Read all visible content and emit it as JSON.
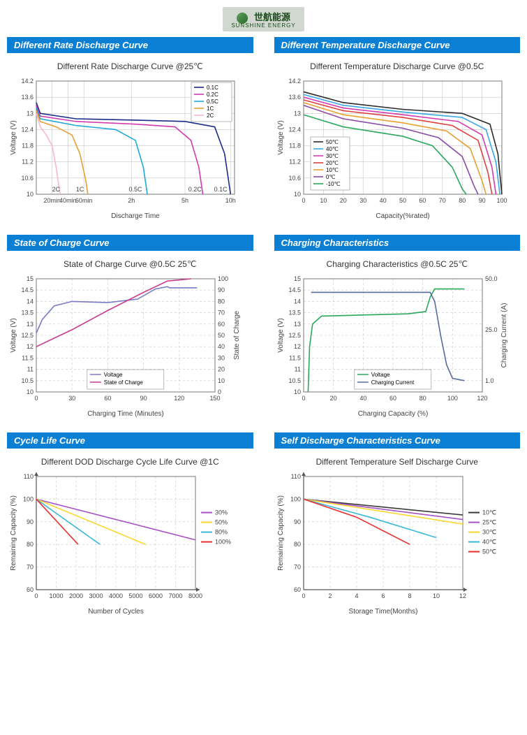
{
  "logo": {
    "cn": "世航能源",
    "en": "SUNSHINE ENERGY"
  },
  "chart1": {
    "header": "Different Rate Discharge Curve",
    "title": "Different Rate Discharge Curve @25℃",
    "type": "line",
    "ylabel": "Voltage (V)",
    "xlabel": "Discharge Time",
    "ylim": [
      10.0,
      14.2
    ],
    "yticks": [
      10.0,
      10.6,
      11.2,
      11.8,
      12.4,
      13.0,
      13.6,
      14.2
    ],
    "xticks_labels": [
      "20min",
      "40min",
      "60min",
      "2h",
      "5h",
      "10h"
    ],
    "xticks_pos": [
      0.08,
      0.16,
      0.24,
      0.48,
      0.75,
      0.98
    ],
    "grid_color": "#c7c7c7",
    "background": "#ffffff",
    "series": [
      {
        "name": "0.1C",
        "color": "#1a2a8a",
        "points": [
          [
            0,
            13.4
          ],
          [
            0.02,
            13.0
          ],
          [
            0.2,
            12.8
          ],
          [
            0.5,
            12.75
          ],
          [
            0.75,
            12.7
          ],
          [
            0.9,
            12.5
          ],
          [
            0.95,
            11.5
          ],
          [
            0.98,
            10.0
          ]
        ],
        "marker_x": 0.93,
        "marker_label": "0.1C"
      },
      {
        "name": "0.2C",
        "color": "#d43ab0",
        "points": [
          [
            0,
            13.3
          ],
          [
            0.02,
            12.9
          ],
          [
            0.2,
            12.7
          ],
          [
            0.5,
            12.6
          ],
          [
            0.7,
            12.5
          ],
          [
            0.78,
            12.0
          ],
          [
            0.82,
            11.0
          ],
          [
            0.84,
            10.0
          ]
        ],
        "marker_x": 0.8,
        "marker_label": "0.2C"
      },
      {
        "name": "0.5C",
        "color": "#1fa8d8",
        "points": [
          [
            0,
            13.2
          ],
          [
            0.02,
            12.8
          ],
          [
            0.2,
            12.55
          ],
          [
            0.4,
            12.4
          ],
          [
            0.5,
            12.0
          ],
          [
            0.54,
            11.0
          ],
          [
            0.56,
            10.0
          ]
        ],
        "marker_x": 0.5,
        "marker_label": "0.5C"
      },
      {
        "name": "1C",
        "color": "#e8a030",
        "points": [
          [
            0,
            13.1
          ],
          [
            0.02,
            12.7
          ],
          [
            0.1,
            12.5
          ],
          [
            0.18,
            12.2
          ],
          [
            0.22,
            11.5
          ],
          [
            0.25,
            10.5
          ],
          [
            0.26,
            10.0
          ]
        ],
        "marker_x": 0.22,
        "marker_label": "1C"
      },
      {
        "name": "2C",
        "color": "#f8b8c8",
        "points": [
          [
            0,
            13.0
          ],
          [
            0.02,
            12.5
          ],
          [
            0.05,
            12.2
          ],
          [
            0.08,
            11.8
          ],
          [
            0.1,
            11.0
          ],
          [
            0.12,
            10.0
          ]
        ],
        "marker_x": 0.1,
        "marker_label": "2C"
      }
    ],
    "legend_pos": "top-right"
  },
  "chart2": {
    "header": "Different Temperature Discharge Curve",
    "title": "Different Temperature Discharge Curve @0.5C",
    "type": "line",
    "ylabel": "Voltage (V)",
    "xlabel": "Capacity(%rated)",
    "ylim": [
      10.0,
      14.2
    ],
    "yticks": [
      10.0,
      10.6,
      11.2,
      11.8,
      12.4,
      13.0,
      13.6,
      14.2
    ],
    "xlim": [
      0,
      100
    ],
    "xticks": [
      0,
      10,
      20,
      30,
      40,
      50,
      60,
      70,
      80,
      90,
      100
    ],
    "grid_color": "#c7c7c7",
    "series": [
      {
        "name": "50℃",
        "color": "#2a2a2a",
        "points": [
          [
            0,
            13.8
          ],
          [
            20,
            13.4
          ],
          [
            50,
            13.15
          ],
          [
            80,
            13.0
          ],
          [
            94,
            12.6
          ],
          [
            98,
            11.5
          ],
          [
            100,
            10.0
          ]
        ]
      },
      {
        "name": "40℃",
        "color": "#3aa8e8",
        "points": [
          [
            0,
            13.7
          ],
          [
            20,
            13.3
          ],
          [
            50,
            13.05
          ],
          [
            80,
            12.85
          ],
          [
            92,
            12.4
          ],
          [
            97,
            11.2
          ],
          [
            99,
            10.0
          ]
        ]
      },
      {
        "name": "30℃",
        "color": "#d43ab0",
        "points": [
          [
            0,
            13.6
          ],
          [
            20,
            13.2
          ],
          [
            50,
            12.95
          ],
          [
            78,
            12.7
          ],
          [
            90,
            12.2
          ],
          [
            95,
            11.0
          ],
          [
            97,
            10.0
          ]
        ]
      },
      {
        "name": "20℃",
        "color": "#e04040",
        "points": [
          [
            0,
            13.5
          ],
          [
            20,
            13.1
          ],
          [
            50,
            12.85
          ],
          [
            75,
            12.55
          ],
          [
            88,
            12.0
          ],
          [
            93,
            10.8
          ],
          [
            95,
            10.0
          ]
        ]
      },
      {
        "name": "10℃",
        "color": "#e8a030",
        "points": [
          [
            0,
            13.4
          ],
          [
            20,
            12.95
          ],
          [
            50,
            12.65
          ],
          [
            72,
            12.35
          ],
          [
            84,
            11.7
          ],
          [
            90,
            10.5
          ],
          [
            92,
            10.0
          ]
        ]
      },
      {
        "name": "0℃",
        "color": "#8a4aa8",
        "points": [
          [
            0,
            13.3
          ],
          [
            20,
            12.8
          ],
          [
            50,
            12.45
          ],
          [
            68,
            12.1
          ],
          [
            80,
            11.4
          ],
          [
            86,
            10.3
          ],
          [
            88,
            10.0
          ]
        ]
      },
      {
        "name": "-10℃",
        "color": "#2aa85a",
        "points": [
          [
            0,
            12.95
          ],
          [
            20,
            12.5
          ],
          [
            50,
            12.15
          ],
          [
            65,
            11.8
          ],
          [
            75,
            11.0
          ],
          [
            80,
            10.2
          ],
          [
            82,
            10.0
          ]
        ]
      }
    ],
    "legend_pos": "bottom-left-inset"
  },
  "chart3": {
    "header": "State of Charge Curve",
    "title": "State of Charge Curve @0.5C 25℃",
    "type": "line-dual",
    "ylabel": "Voltage (V)",
    "y2label": "State of Charge",
    "xlabel": "Charging Time (Minutes)",
    "ylim": [
      10.0,
      15.0
    ],
    "yticks": [
      10.0,
      10.5,
      11.0,
      11.5,
      12.0,
      12.5,
      13.0,
      13.5,
      14.0,
      14.5,
      15.0
    ],
    "y2lim": [
      0,
      100
    ],
    "y2ticks": [
      0,
      10,
      20,
      30,
      40,
      50,
      60,
      70,
      80,
      90,
      100
    ],
    "xlim": [
      0,
      150
    ],
    "xticks": [
      0,
      30,
      60,
      90,
      120,
      150
    ],
    "grid_color": "#c7c7c7",
    "grid_dash": true,
    "series": [
      {
        "name": "Voltage",
        "color": "#7a7ac8",
        "axis": "y",
        "points": [
          [
            0,
            12.6
          ],
          [
            5,
            13.2
          ],
          [
            15,
            13.8
          ],
          [
            30,
            14.0
          ],
          [
            60,
            13.95
          ],
          [
            85,
            14.1
          ],
          [
            100,
            14.55
          ],
          [
            110,
            14.65
          ],
          [
            112,
            14.6
          ],
          [
            135,
            14.6
          ]
        ]
      },
      {
        "name": "State of Charge",
        "color": "#c83a8a",
        "axis": "y2",
        "points": [
          [
            0,
            40
          ],
          [
            30,
            55
          ],
          [
            60,
            72
          ],
          [
            90,
            88
          ],
          [
            110,
            98
          ],
          [
            130,
            100
          ]
        ]
      }
    ],
    "legend_pos": "bottom-center-inset"
  },
  "chart4": {
    "header": "Charging Characteristics",
    "title": "Charging Characteristics @0.5C 25℃",
    "type": "line-dual",
    "ylabel": "Voltage (V)",
    "y2label": "Charging Current (A)",
    "xlabel": "Charging Capacity (%)",
    "ylim": [
      10.0,
      15.0
    ],
    "yticks": [
      10.0,
      10.5,
      11.0,
      11.5,
      12.0,
      12.5,
      13.0,
      13.5,
      14.0,
      14.5,
      15.0
    ],
    "y2ticks_labels": [
      "1.0",
      "25.0",
      "50.0"
    ],
    "y2ticks_pos": [
      10.5,
      12.75,
      15.0
    ],
    "xlim": [
      0,
      120
    ],
    "xticks": [
      0,
      20,
      40,
      60,
      80,
      100,
      120
    ],
    "grid_color": "#c7c7c7",
    "grid_dash": true,
    "series": [
      {
        "name": "Voltage",
        "color": "#2aa85a",
        "axis": "y",
        "points": [
          [
            3,
            10.0
          ],
          [
            4,
            12.0
          ],
          [
            6,
            13.0
          ],
          [
            12,
            13.35
          ],
          [
            40,
            13.4
          ],
          [
            70,
            13.45
          ],
          [
            82,
            13.55
          ],
          [
            85,
            14.2
          ],
          [
            88,
            14.55
          ],
          [
            100,
            14.55
          ],
          [
            108,
            14.55
          ]
        ]
      },
      {
        "name": "Charging Current",
        "color": "#5a6a9a",
        "axis": "y",
        "points": [
          [
            5,
            14.4
          ],
          [
            85,
            14.4
          ],
          [
            88,
            14.0
          ],
          [
            92,
            12.5
          ],
          [
            96,
            11.2
          ],
          [
            100,
            10.6
          ],
          [
            108,
            10.5
          ]
        ]
      }
    ],
    "legend_pos": "bottom-center-inset"
  },
  "chart5": {
    "header": "Cycle Life Curve",
    "title": "Different DOD Discharge Cycle Life Curve @1C",
    "type": "line",
    "ylabel": "Remaining Capacity (%)",
    "xlabel": "Number of Cycles",
    "ylim": [
      60,
      110
    ],
    "yticks": [
      60,
      70,
      80,
      90,
      100,
      110
    ],
    "xlim": [
      0,
      8000
    ],
    "xticks": [
      0,
      1000,
      2000,
      3000,
      4000,
      5000,
      6000,
      7000,
      8000
    ],
    "grid_color": "#c7c7c7",
    "grid_dash": true,
    "arrow_axes": true,
    "series": [
      {
        "name": "30%",
        "color": "#a850c8",
        "points": [
          [
            0,
            100
          ],
          [
            8000,
            82
          ]
        ]
      },
      {
        "name": "50%",
        "color": "#f8d830",
        "points": [
          [
            0,
            100
          ],
          [
            5500,
            80
          ]
        ]
      },
      {
        "name": "80%",
        "color": "#3ab8d8",
        "points": [
          [
            0,
            100
          ],
          [
            3200,
            80
          ]
        ]
      },
      {
        "name": "100%",
        "color": "#e83030",
        "points": [
          [
            0,
            100
          ],
          [
            2100,
            80
          ]
        ]
      }
    ],
    "legend_pos": "right-outside"
  },
  "chart6": {
    "header": "Self Discharge Characteristics Curve",
    "title": "Different Temperature Self Discharge Curve",
    "type": "line",
    "ylabel": "Remaining Capacity (%)",
    "xlabel": "Storage Time(Months)",
    "ylim": [
      60,
      110
    ],
    "yticks": [
      60,
      70,
      80,
      90,
      100,
      110
    ],
    "xlim": [
      0,
      12
    ],
    "xticks": [
      0,
      2,
      4,
      6,
      8,
      10,
      12
    ],
    "grid_color": "#c7c7c7",
    "grid_dash": true,
    "arrow_axes": true,
    "series": [
      {
        "name": "10℃",
        "color": "#3a3a3a",
        "points": [
          [
            0,
            100
          ],
          [
            12,
            93
          ]
        ]
      },
      {
        "name": "25℃",
        "color": "#a850c8",
        "points": [
          [
            0,
            100
          ],
          [
            12,
            91
          ]
        ]
      },
      {
        "name": "30℃",
        "color": "#f8d830",
        "points": [
          [
            0,
            100
          ],
          [
            12,
            89
          ]
        ]
      },
      {
        "name": "40℃",
        "color": "#3ab8d8",
        "points": [
          [
            0,
            100
          ],
          [
            5,
            92
          ],
          [
            10,
            83
          ]
        ]
      },
      {
        "name": "50℃",
        "color": "#e83030",
        "points": [
          [
            0,
            100
          ],
          [
            4,
            92
          ],
          [
            8,
            80
          ]
        ]
      }
    ],
    "legend_pos": "right-outside"
  }
}
